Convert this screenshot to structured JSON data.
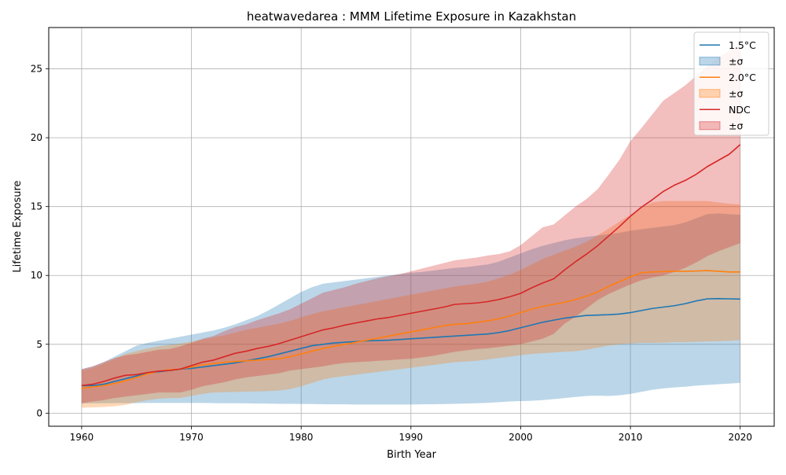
{
  "chart_data": {
    "type": "line",
    "title": "heatwavedarea : MMM Lifetime Exposure in Kazakhstan",
    "xlabel": "Birth Year",
    "ylabel": "Lifetime Exposure",
    "xlim": [
      1957,
      2023.1
    ],
    "ylim": [
      -0.95,
      28.0
    ],
    "xticks": [
      1960,
      1970,
      1980,
      1990,
      2000,
      2010,
      2020
    ],
    "yticks": [
      0,
      5,
      10,
      15,
      20,
      25
    ],
    "grid": true,
    "legend_position": "top-right",
    "x": [
      1960,
      1961,
      1962,
      1963,
      1964,
      1965,
      1966,
      1967,
      1968,
      1969,
      1970,
      1971,
      1972,
      1973,
      1974,
      1975,
      1976,
      1977,
      1978,
      1979,
      1980,
      1981,
      1982,
      1983,
      1984,
      1985,
      1986,
      1987,
      1988,
      1989,
      1990,
      1991,
      1992,
      1993,
      1994,
      1995,
      1996,
      1997,
      1998,
      1999,
      2000,
      2001,
      2002,
      2003,
      2004,
      2005,
      2006,
      2007,
      2008,
      2009,
      2010,
      2011,
      2012,
      2013,
      2014,
      2015,
      2016,
      2017,
      2018,
      2019,
      2020
    ],
    "series": [
      {
        "name": "1.5°C",
        "band_name": "±σ",
        "color": "#1f77b4",
        "band_color": "#1f77b4",
        "band_opacity": 0.3,
        "values": [
          2.0,
          2.0,
          2.1,
          2.3,
          2.5,
          2.7,
          2.9,
          3.0,
          3.1,
          3.2,
          3.25,
          3.35,
          3.45,
          3.55,
          3.65,
          3.8,
          3.95,
          4.1,
          4.3,
          4.5,
          4.7,
          4.9,
          5.0,
          5.1,
          5.15,
          5.2,
          5.25,
          5.28,
          5.3,
          5.35,
          5.4,
          5.45,
          5.5,
          5.55,
          5.6,
          5.65,
          5.7,
          5.75,
          5.85,
          6.0,
          6.2,
          6.4,
          6.6,
          6.75,
          6.9,
          7.0,
          7.1,
          7.12,
          7.15,
          7.2,
          7.3,
          7.45,
          7.6,
          7.7,
          7.8,
          7.95,
          8.15,
          8.3,
          8.32,
          8.3,
          8.28
        ],
        "upper": [
          3.2,
          3.4,
          3.7,
          4.1,
          4.5,
          4.9,
          5.1,
          5.25,
          5.4,
          5.55,
          5.7,
          5.85,
          6.0,
          6.2,
          6.45,
          6.75,
          7.05,
          7.45,
          7.9,
          8.35,
          8.8,
          9.15,
          9.4,
          9.5,
          9.6,
          9.7,
          9.8,
          9.9,
          10.0,
          10.1,
          10.2,
          10.25,
          10.35,
          10.45,
          10.55,
          10.6,
          10.7,
          10.8,
          11.0,
          11.3,
          11.6,
          11.9,
          12.15,
          12.35,
          12.55,
          12.7,
          12.8,
          12.9,
          13.0,
          13.1,
          13.25,
          13.35,
          13.45,
          13.55,
          13.65,
          13.85,
          14.15,
          14.45,
          14.5,
          14.45,
          14.4
        ],
        "lower": [
          0.7,
          0.72,
          0.72,
          0.73,
          0.73,
          0.73,
          0.74,
          0.74,
          0.74,
          0.74,
          0.74,
          0.74,
          0.73,
          0.72,
          0.72,
          0.71,
          0.7,
          0.69,
          0.68,
          0.68,
          0.67,
          0.66,
          0.65,
          0.64,
          0.64,
          0.63,
          0.63,
          0.63,
          0.63,
          0.63,
          0.63,
          0.64,
          0.65,
          0.66,
          0.68,
          0.7,
          0.72,
          0.75,
          0.8,
          0.85,
          0.88,
          0.9,
          0.95,
          1.02,
          1.1,
          1.18,
          1.25,
          1.27,
          1.25,
          1.3,
          1.4,
          1.55,
          1.7,
          1.8,
          1.87,
          1.92,
          2.0,
          2.05,
          2.1,
          2.15,
          2.2
        ]
      },
      {
        "name": "2.0°C",
        "band_name": "±σ",
        "color": "#ff7f0e",
        "band_color": "#ff7f0e",
        "band_opacity": 0.3,
        "values": [
          1.8,
          1.9,
          2.0,
          2.15,
          2.35,
          2.6,
          2.85,
          3.05,
          3.15,
          3.2,
          3.35,
          3.5,
          3.6,
          3.7,
          3.75,
          3.8,
          3.85,
          3.9,
          3.95,
          4.1,
          4.3,
          4.5,
          4.7,
          4.85,
          5.0,
          5.15,
          5.3,
          5.45,
          5.6,
          5.75,
          5.9,
          6.05,
          6.2,
          6.35,
          6.45,
          6.5,
          6.6,
          6.7,
          6.85,
          7.05,
          7.3,
          7.55,
          7.75,
          7.9,
          8.05,
          8.25,
          8.5,
          8.8,
          9.2,
          9.55,
          9.9,
          10.2,
          10.25,
          10.28,
          10.3,
          10.3,
          10.32,
          10.35,
          10.3,
          10.25,
          10.25
        ],
        "upper": [
          3.1,
          3.3,
          3.6,
          3.95,
          4.3,
          4.5,
          4.7,
          4.85,
          4.95,
          5.05,
          5.2,
          5.35,
          5.5,
          5.65,
          5.85,
          6.05,
          6.2,
          6.35,
          6.5,
          6.7,
          6.95,
          7.2,
          7.4,
          7.55,
          7.7,
          7.85,
          8.0,
          8.15,
          8.3,
          8.45,
          8.6,
          8.75,
          8.9,
          9.05,
          9.2,
          9.3,
          9.4,
          9.55,
          9.8,
          10.05,
          10.4,
          10.8,
          11.2,
          11.5,
          11.8,
          12.1,
          12.45,
          12.9,
          13.4,
          13.9,
          14.4,
          14.9,
          15.3,
          15.4,
          15.4,
          15.4,
          15.4,
          15.4,
          15.3,
          15.2,
          15.15
        ],
        "lower": [
          0.4,
          0.42,
          0.45,
          0.5,
          0.6,
          0.8,
          0.95,
          1.05,
          1.1,
          1.1,
          1.25,
          1.4,
          1.5,
          1.52,
          1.54,
          1.56,
          1.58,
          1.6,
          1.65,
          1.75,
          1.95,
          2.2,
          2.45,
          2.6,
          2.7,
          2.8,
          2.9,
          3.0,
          3.1,
          3.2,
          3.3,
          3.4,
          3.5,
          3.6,
          3.7,
          3.75,
          3.8,
          3.9,
          4.0,
          4.1,
          4.2,
          4.3,
          4.35,
          4.4,
          4.45,
          4.5,
          4.6,
          4.75,
          4.9,
          5.0,
          5.05,
          5.1,
          5.1,
          5.12,
          5.15,
          5.15,
          5.18,
          5.2,
          5.22,
          5.25,
          5.3
        ]
      },
      {
        "name": "NDC",
        "band_name": "±σ",
        "color": "#d62728",
        "band_color": "#d62728",
        "band_opacity": 0.3,
        "values": [
          2.0,
          2.1,
          2.3,
          2.55,
          2.75,
          2.8,
          2.95,
          3.05,
          3.1,
          3.2,
          3.45,
          3.7,
          3.85,
          4.1,
          4.35,
          4.5,
          4.7,
          4.85,
          5.05,
          5.3,
          5.55,
          5.8,
          6.05,
          6.2,
          6.4,
          6.55,
          6.7,
          6.85,
          6.95,
          7.1,
          7.25,
          7.4,
          7.55,
          7.7,
          7.9,
          7.95,
          8.0,
          8.1,
          8.25,
          8.45,
          8.7,
          9.1,
          9.45,
          9.75,
          10.4,
          11.0,
          11.55,
          12.15,
          12.85,
          13.55,
          14.3,
          14.95,
          15.5,
          16.1,
          16.55,
          16.9,
          17.35,
          17.9,
          18.35,
          18.8,
          19.5
        ],
        "upper": [
          3.2,
          3.4,
          3.7,
          4.0,
          4.2,
          4.3,
          4.45,
          4.6,
          4.65,
          4.85,
          5.1,
          5.4,
          5.6,
          5.95,
          6.25,
          6.45,
          6.75,
          7.0,
          7.25,
          7.55,
          7.95,
          8.35,
          8.75,
          8.95,
          9.15,
          9.4,
          9.6,
          9.8,
          9.95,
          10.1,
          10.3,
          10.5,
          10.7,
          10.9,
          11.1,
          11.2,
          11.3,
          11.45,
          11.55,
          11.75,
          12.2,
          12.85,
          13.5,
          13.7,
          14.35,
          15.0,
          15.55,
          16.25,
          17.3,
          18.4,
          19.75,
          20.7,
          21.7,
          22.7,
          23.25,
          23.8,
          24.5,
          25.2,
          25.8,
          26.3,
          26.7
        ],
        "lower": [
          0.72,
          0.85,
          0.95,
          1.1,
          1.2,
          1.3,
          1.4,
          1.5,
          1.5,
          1.5,
          1.7,
          1.95,
          2.1,
          2.25,
          2.45,
          2.6,
          2.7,
          2.8,
          2.9,
          3.1,
          3.2,
          3.3,
          3.4,
          3.55,
          3.65,
          3.7,
          3.75,
          3.8,
          3.85,
          3.9,
          3.95,
          4.05,
          4.15,
          4.3,
          4.45,
          4.55,
          4.65,
          4.7,
          4.8,
          4.9,
          5.0,
          5.2,
          5.4,
          5.75,
          6.5,
          7.0,
          7.6,
          8.2,
          8.65,
          9.0,
          9.35,
          9.65,
          9.85,
          10.0,
          10.25,
          10.55,
          10.95,
          11.4,
          11.75,
          12.05,
          12.35
        ]
      }
    ]
  }
}
